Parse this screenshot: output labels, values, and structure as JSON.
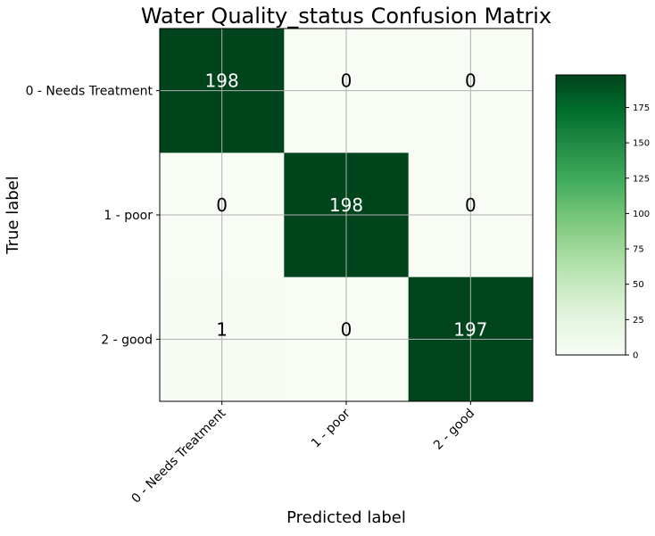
{
  "chart_data": {
    "type": "heatmap",
    "title": "Water Quality_status Confusion Matrix",
    "xlabel": "Predicted label",
    "ylabel": "True label",
    "x_categories": [
      "0 - Needs Treatment",
      "1 - poor",
      "2 - good"
    ],
    "y_categories": [
      "0 - Needs Treatment",
      "1 - poor",
      "2 - good"
    ],
    "values": [
      [
        198,
        0,
        0
      ],
      [
        0,
        198,
        0
      ],
      [
        1,
        0,
        197
      ]
    ],
    "colormap": "Greens",
    "colorbar": {
      "range": [
        0,
        198
      ],
      "ticks": [
        "0",
        "25",
        "50",
        "75",
        "100",
        "125",
        "150",
        "175"
      ]
    },
    "colors": {
      "low": "#f7fcf5",
      "high": "#00441b",
      "text_on_dark": "#ffffff",
      "text_on_light": "#000000",
      "grid": "#b0b0b0"
    },
    "grid": true
  }
}
